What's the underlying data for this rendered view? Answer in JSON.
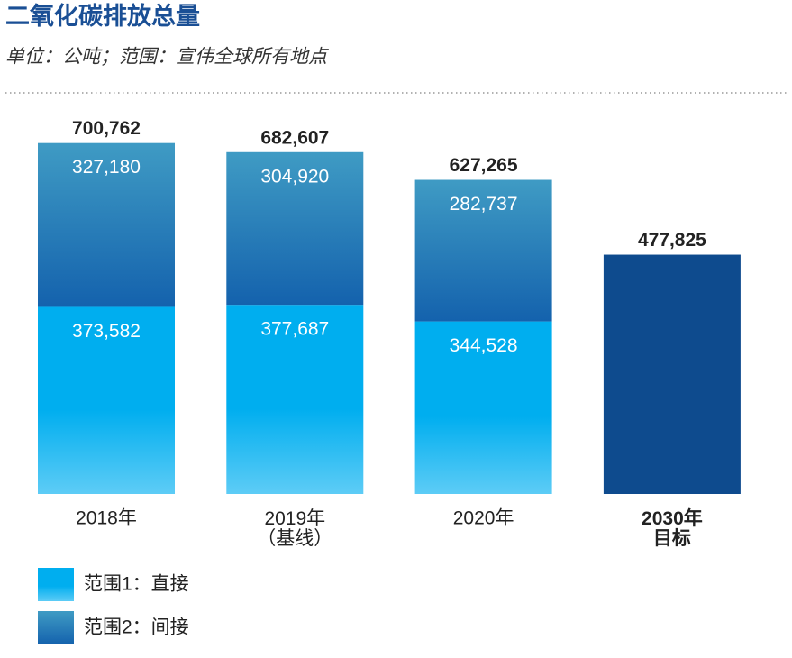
{
  "chart_data": {
    "type": "bar",
    "stacked": true,
    "title": "二氧化碳排放总量",
    "subtitle": "单位：公吨；范围：宣伟全球所有地点",
    "categories": [
      "2018年",
      "2019年\n（基线）",
      "2020年",
      "2030年\n目标"
    ],
    "series": [
      {
        "name": "范围1：直接",
        "color": "#00aeef",
        "values": [
          373582,
          377687,
          344528,
          null
        ],
        "value_labels": [
          "373,582",
          "377,687",
          "344,528",
          null
        ]
      },
      {
        "name": "范围2：间接",
        "color": "#3f9bc4",
        "values": [
          327180,
          304920,
          282737,
          null
        ],
        "value_labels": [
          "327,180",
          "304,920",
          "282,737",
          null
        ]
      }
    ],
    "totals": {
      "values": [
        700762,
        682607,
        627265,
        477825
      ],
      "value_labels": [
        "700,762",
        "682,607",
        "627,265",
        "477,825"
      ],
      "color": "#0e4b8e"
    },
    "ylim": [
      0,
      720000
    ]
  }
}
